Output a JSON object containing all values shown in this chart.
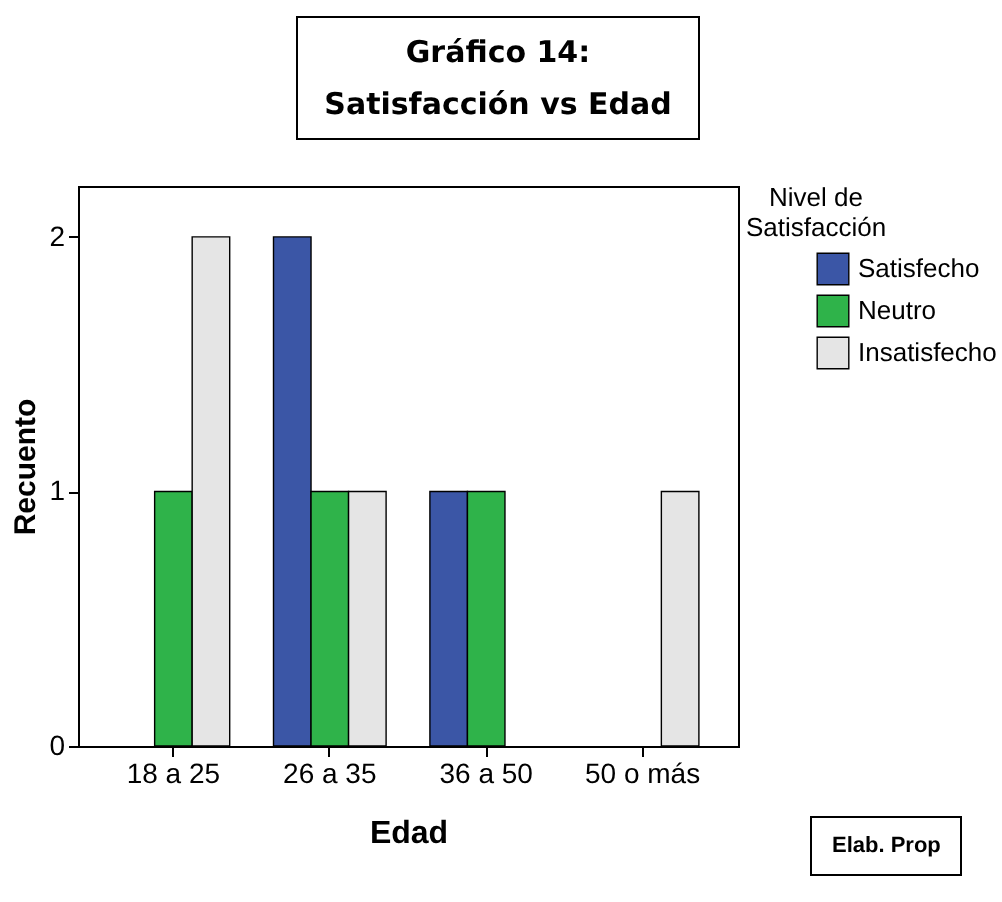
{
  "chart_data": {
    "type": "bar",
    "title": "Gráfico 14:",
    "subtitle": "Satisfacción vs Edad",
    "xlabel": "Edad",
    "ylabel": "Recuento",
    "legend_title": "Nivel de Satisfacción",
    "categories": [
      "18 a 25",
      "26 a 35",
      "36 a 50",
      "50 o más"
    ],
    "series": [
      {
        "name": "Satisfecho",
        "color": "#3b56a6",
        "values": [
          null,
          2,
          1,
          null
        ]
      },
      {
        "name": "Neutro",
        "color": "#2fb34a",
        "values": [
          1,
          1,
          1,
          null
        ]
      },
      {
        "name": "Insatisfecho",
        "color": "#e5e5e5",
        "values": [
          2,
          1,
          null,
          1
        ]
      }
    ],
    "ylim": [
      0,
      2.2
    ],
    "yticks": [
      0,
      1,
      2
    ],
    "legend": "top right",
    "annotations": [
      "Elab. Prop"
    ]
  }
}
